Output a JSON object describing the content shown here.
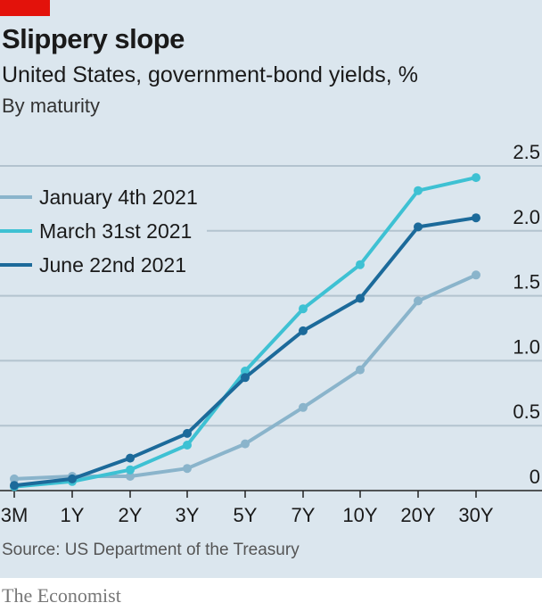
{
  "header": {
    "title": "Slippery slope",
    "subtitle": "United States, government-bond yields, %",
    "subsubtitle": "By maturity"
  },
  "footer": {
    "source": "Source: US Department of the Treasury",
    "brand": "The Economist"
  },
  "colors": {
    "background": "#dbe6ee",
    "brand_red": "#e3120b",
    "jan": "#8ab4cb",
    "mar": "#3ec1d3",
    "jun": "#1c6a9a"
  },
  "chart_data": {
    "type": "line",
    "categories": [
      "3M",
      "1Y",
      "2Y",
      "3Y",
      "5Y",
      "7Y",
      "10Y",
      "20Y",
      "30Y"
    ],
    "yticks": [
      "0",
      "0.5",
      "1.0",
      "1.5",
      "2.0",
      "2.5"
    ],
    "ylim": [
      0,
      2.5
    ],
    "grid": true,
    "legend_placement": "top-left",
    "series": [
      {
        "name": "January 4th 2021",
        "color": "#8ab4cb",
        "values": [
          0.09,
          0.11,
          0.11,
          0.17,
          0.36,
          0.64,
          0.93,
          1.46,
          1.66
        ]
      },
      {
        "name": "March 31st 2021",
        "color": "#3ec1d3",
        "values": [
          0.03,
          0.07,
          0.16,
          0.35,
          0.92,
          1.4,
          1.74,
          2.31,
          2.41
        ]
      },
      {
        "name": "June 22nd 2021",
        "color": "#1c6a9a",
        "values": [
          0.04,
          0.09,
          0.25,
          0.44,
          0.87,
          1.23,
          1.48,
          2.03,
          2.1
        ]
      }
    ]
  }
}
